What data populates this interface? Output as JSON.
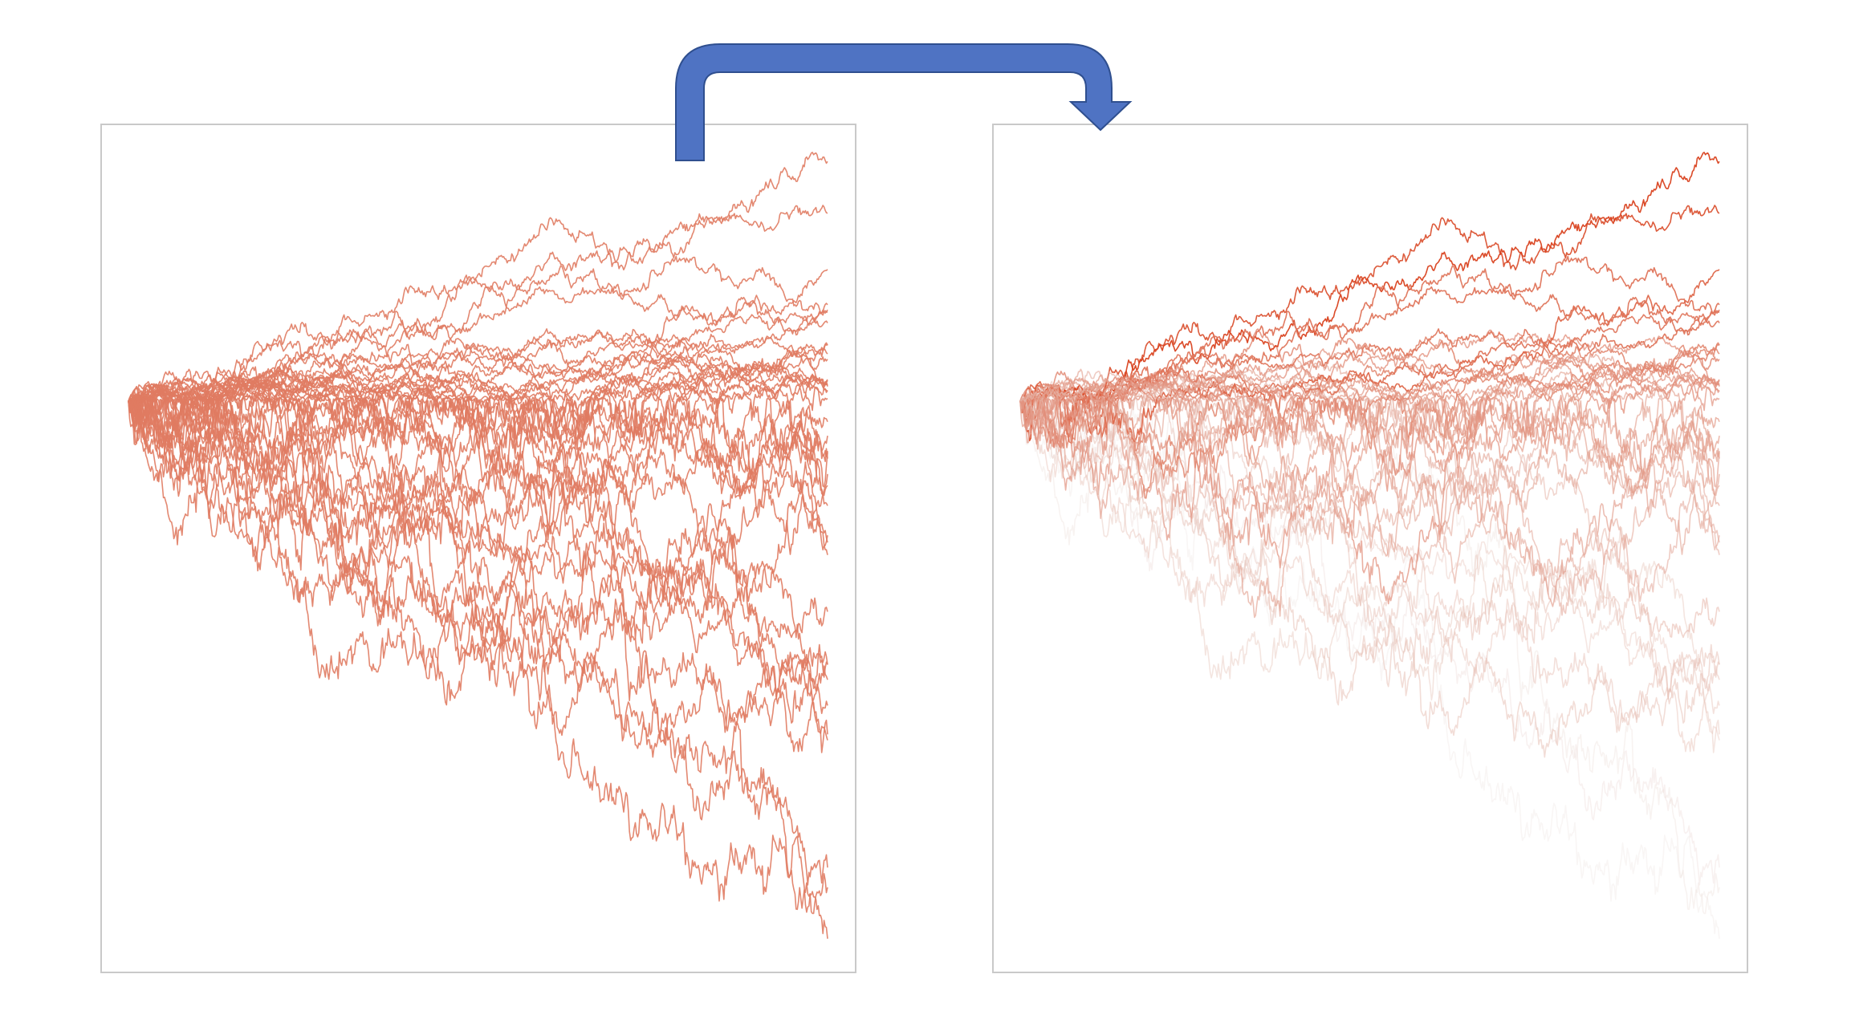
{
  "diagram": {
    "colors": {
      "background": "#ffffff",
      "frame": "#c9c9c9",
      "arrow_fill": "#4f73c3",
      "arrow_stroke": "#2f4f8f",
      "path_uniform": "#e07b62",
      "path_strong": "#d9411e",
      "path_faded": "#e8dcd8"
    },
    "panels": [
      {
        "id": "left",
        "style": "uniform"
      },
      {
        "id": "right",
        "style": "weighted"
      }
    ],
    "arrow": {
      "from": "left",
      "to": "right",
      "icon": "curved-arrow-icon"
    },
    "paths": {
      "count": 40,
      "steps": 600,
      "seed": 7
    }
  }
}
